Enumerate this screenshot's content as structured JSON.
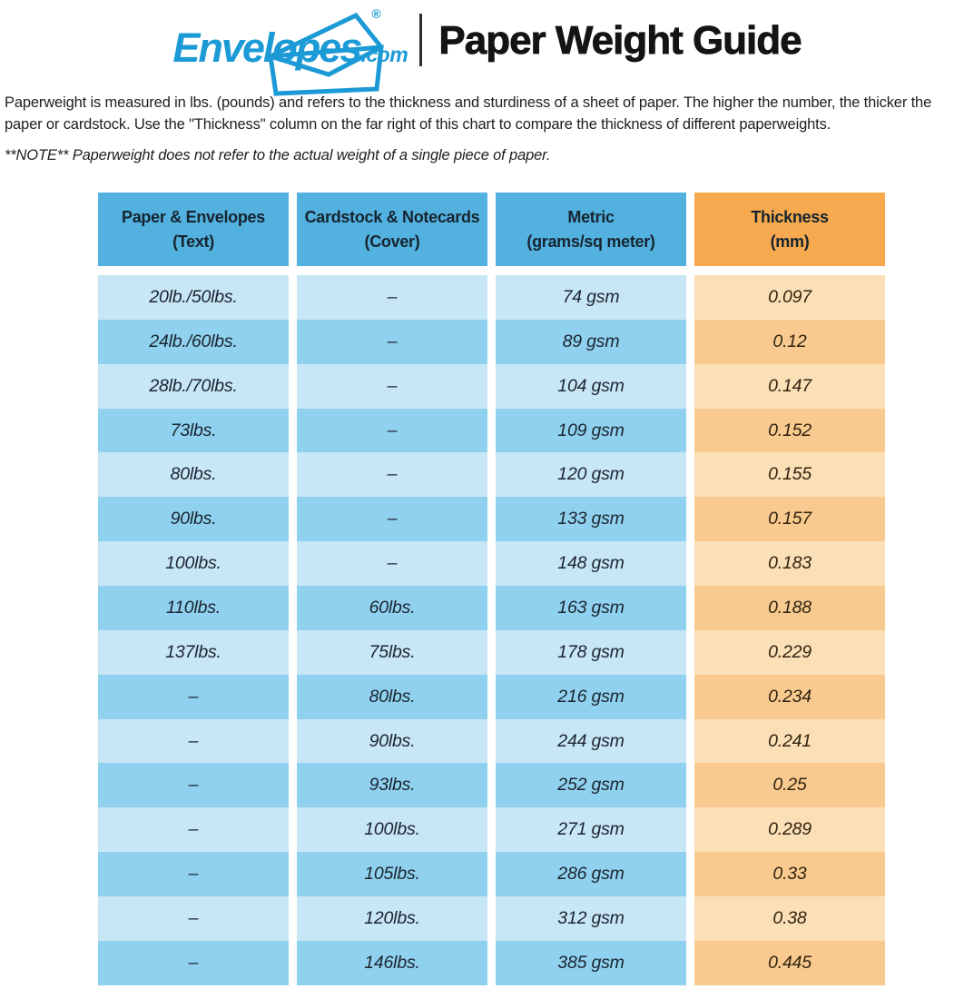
{
  "logo": {
    "brand": "Envelopes",
    "tld": ".com",
    "registered": "®"
  },
  "title": "Paper Weight Guide",
  "intro": "Paperweight is measured in lbs. (pounds) and refers to the thickness and sturdiness of a sheet of paper. The higher the number, the thicker the paper or cardstock. Use the \"Thickness\" column on the far right of this chart to compare the thickness of different paperweights.",
  "note": "**NOTE** Paperweight does not refer to the actual weight of a single piece of paper.",
  "colors": {
    "logo_blue": "#1b9ad6",
    "header_blue": "#53b1df",
    "header_orange": "#f6a94f",
    "row_light_blue": "#c7e6f6",
    "row_dark_blue": "#8fd1ee",
    "row_light_orange": "#fbdfb6",
    "row_dark_orange": "#f8ca90"
  },
  "chart_data": {
    "type": "table",
    "title": "Paper Weight Guide",
    "columns": [
      {
        "label": "Paper & Envelopes",
        "sublabel": "(Text)",
        "header_color": "#53b1df"
      },
      {
        "label": "Cardstock & Notecards",
        "sublabel": "(Cover)",
        "header_color": "#53b1df"
      },
      {
        "label": "Metric",
        "sublabel": "(grams/sq meter)",
        "header_color": "#53b1df"
      },
      {
        "label": "Thickness",
        "sublabel": "(mm)",
        "header_color": "#f6a94f"
      }
    ],
    "rows": [
      [
        "20lb./50lbs.",
        "–",
        "74 gsm",
        "0.097"
      ],
      [
        "24lb./60lbs.",
        "–",
        "89 gsm",
        "0.12"
      ],
      [
        "28lb./70lbs.",
        "–",
        "104 gsm",
        "0.147"
      ],
      [
        "73lbs.",
        "–",
        "109 gsm",
        "0.152"
      ],
      [
        "80lbs.",
        "–",
        "120 gsm",
        "0.155"
      ],
      [
        "90lbs.",
        "–",
        "133 gsm",
        "0.157"
      ],
      [
        "100lbs.",
        "–",
        "148 gsm",
        "0.183"
      ],
      [
        "110lbs.",
        "60lbs.",
        "163 gsm",
        "0.188"
      ],
      [
        "137lbs.",
        "75lbs.",
        "178 gsm",
        "0.229"
      ],
      [
        "–",
        "80lbs.",
        "216 gsm",
        "0.234"
      ],
      [
        "–",
        "90lbs.",
        "244 gsm",
        "0.241"
      ],
      [
        "–",
        "93lbs.",
        "252 gsm",
        "0.25"
      ],
      [
        "–",
        "100lbs.",
        "271 gsm",
        "0.289"
      ],
      [
        "–",
        "105lbs.",
        "286 gsm",
        "0.33"
      ],
      [
        "–",
        "120lbs.",
        "312 gsm",
        "0.38"
      ],
      [
        "–",
        "146lbs.",
        "385 gsm",
        "0.445"
      ]
    ]
  }
}
